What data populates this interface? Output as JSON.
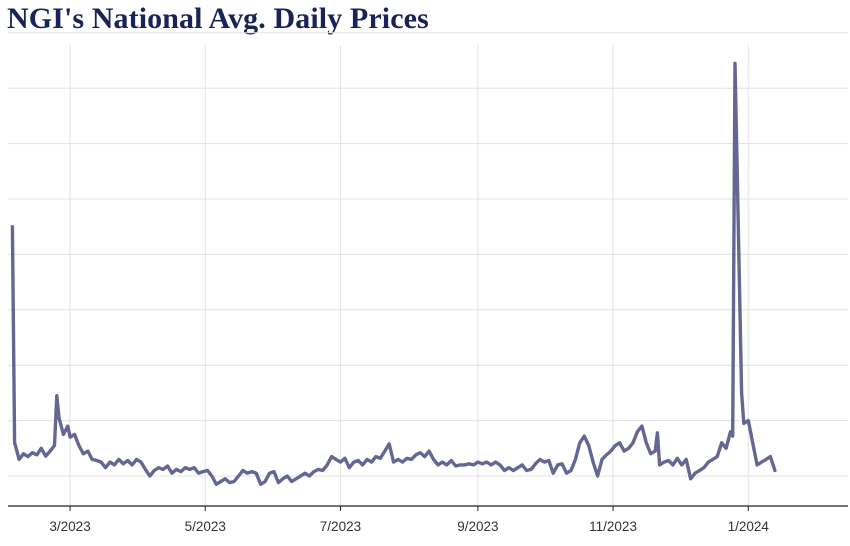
{
  "chart_data": {
    "type": "line",
    "title": "NGI's National Avg. Daily Prices",
    "xlabel": "",
    "ylabel": "",
    "x_tick_labels": [
      "3/2023",
      "5/2023",
      "7/2023",
      "9/2023",
      "11/2023",
      "1/2024"
    ],
    "x_ticks": [
      "2023-03-01",
      "2023-05-01",
      "2023-07-01",
      "2023-09-01",
      "2023-11-01",
      "2024-01-01"
    ],
    "xlim": [
      "2023-02-01",
      "2024-02-15"
    ],
    "ylim": [
      0,
      8
    ],
    "y_gridlines": [
      0,
      1,
      2,
      3,
      4,
      5,
      6,
      7,
      8
    ],
    "y_tick_labels_visible": false,
    "grid": true,
    "line_color": "#646791",
    "series": [
      {
        "points": [
          [
            "2023-02-03",
            4.5
          ],
          [
            "2023-02-04",
            0.6
          ],
          [
            "2023-02-05",
            0.45
          ],
          [
            "2023-02-06",
            0.3
          ],
          [
            "2023-02-08",
            0.4
          ],
          [
            "2023-02-10",
            0.35
          ],
          [
            "2023-02-12",
            0.42
          ],
          [
            "2023-02-14",
            0.38
          ],
          [
            "2023-02-16",
            0.5
          ],
          [
            "2023-02-18",
            0.36
          ],
          [
            "2023-02-20",
            0.45
          ],
          [
            "2023-02-22",
            0.55
          ],
          [
            "2023-02-23",
            1.45
          ],
          [
            "2023-02-24",
            1.05
          ],
          [
            "2023-02-26",
            0.75
          ],
          [
            "2023-02-28",
            0.9
          ],
          [
            "2023-03-01",
            0.7
          ],
          [
            "2023-03-03",
            0.75
          ],
          [
            "2023-03-05",
            0.55
          ],
          [
            "2023-03-07",
            0.4
          ],
          [
            "2023-03-09",
            0.45
          ],
          [
            "2023-03-11",
            0.3
          ],
          [
            "2023-03-13",
            0.28
          ],
          [
            "2023-03-15",
            0.25
          ],
          [
            "2023-03-17",
            0.15
          ],
          [
            "2023-03-19",
            0.25
          ],
          [
            "2023-03-21",
            0.2
          ],
          [
            "2023-03-23",
            0.3
          ],
          [
            "2023-03-25",
            0.22
          ],
          [
            "2023-03-27",
            0.28
          ],
          [
            "2023-03-29",
            0.2
          ],
          [
            "2023-03-31",
            0.3
          ],
          [
            "2023-04-02",
            0.25
          ],
          [
            "2023-04-04",
            0.12
          ],
          [
            "2023-04-06",
            0.0
          ],
          [
            "2023-04-08",
            0.1
          ],
          [
            "2023-04-10",
            0.15
          ],
          [
            "2023-04-12",
            0.12
          ],
          [
            "2023-04-14",
            0.18
          ],
          [
            "2023-04-16",
            0.05
          ],
          [
            "2023-04-18",
            0.12
          ],
          [
            "2023-04-20",
            0.08
          ],
          [
            "2023-04-22",
            0.15
          ],
          [
            "2023-04-24",
            0.12
          ],
          [
            "2023-04-26",
            0.15
          ],
          [
            "2023-04-28",
            0.05
          ],
          [
            "2023-04-30",
            0.08
          ],
          [
            "2023-05-02",
            0.1
          ],
          [
            "2023-05-04",
            0.0
          ],
          [
            "2023-05-06",
            -0.15
          ],
          [
            "2023-05-08",
            -0.1
          ],
          [
            "2023-05-10",
            -0.05
          ],
          [
            "2023-05-12",
            -0.12
          ],
          [
            "2023-05-14",
            -0.1
          ],
          [
            "2023-05-16",
            0.0
          ],
          [
            "2023-05-18",
            0.1
          ],
          [
            "2023-05-20",
            0.05
          ],
          [
            "2023-05-22",
            0.08
          ],
          [
            "2023-05-24",
            0.05
          ],
          [
            "2023-05-26",
            -0.15
          ],
          [
            "2023-05-28",
            -0.1
          ],
          [
            "2023-05-30",
            0.05
          ],
          [
            "2023-06-01",
            0.08
          ],
          [
            "2023-06-03",
            -0.12
          ],
          [
            "2023-06-05",
            -0.05
          ],
          [
            "2023-06-07",
            0.0
          ],
          [
            "2023-06-09",
            -0.1
          ],
          [
            "2023-06-11",
            -0.05
          ],
          [
            "2023-06-13",
            0.0
          ],
          [
            "2023-06-15",
            0.05
          ],
          [
            "2023-06-17",
            0.0
          ],
          [
            "2023-06-19",
            0.08
          ],
          [
            "2023-06-21",
            0.12
          ],
          [
            "2023-06-23",
            0.1
          ],
          [
            "2023-06-25",
            0.2
          ],
          [
            "2023-06-27",
            0.35
          ],
          [
            "2023-06-29",
            0.3
          ],
          [
            "2023-07-01",
            0.25
          ],
          [
            "2023-07-03",
            0.32
          ],
          [
            "2023-07-05",
            0.15
          ],
          [
            "2023-07-07",
            0.25
          ],
          [
            "2023-07-09",
            0.28
          ],
          [
            "2023-07-11",
            0.2
          ],
          [
            "2023-07-13",
            0.3
          ],
          [
            "2023-07-15",
            0.25
          ],
          [
            "2023-07-17",
            0.35
          ],
          [
            "2023-07-19",
            0.32
          ],
          [
            "2023-07-21",
            0.45
          ],
          [
            "2023-07-23",
            0.58
          ],
          [
            "2023-07-25",
            0.25
          ],
          [
            "2023-07-27",
            0.3
          ],
          [
            "2023-07-29",
            0.25
          ],
          [
            "2023-07-31",
            0.32
          ],
          [
            "2023-08-02",
            0.3
          ],
          [
            "2023-08-04",
            0.38
          ],
          [
            "2023-08-06",
            0.42
          ],
          [
            "2023-08-08",
            0.35
          ],
          [
            "2023-08-10",
            0.45
          ],
          [
            "2023-08-12",
            0.3
          ],
          [
            "2023-08-14",
            0.2
          ],
          [
            "2023-08-16",
            0.25
          ],
          [
            "2023-08-18",
            0.2
          ],
          [
            "2023-08-20",
            0.28
          ],
          [
            "2023-08-22",
            0.18
          ],
          [
            "2023-08-24",
            0.2
          ],
          [
            "2023-08-26",
            0.2
          ],
          [
            "2023-08-28",
            0.22
          ],
          [
            "2023-08-30",
            0.2
          ],
          [
            "2023-09-01",
            0.25
          ],
          [
            "2023-09-03",
            0.22
          ],
          [
            "2023-09-05",
            0.25
          ],
          [
            "2023-09-07",
            0.2
          ],
          [
            "2023-09-09",
            0.25
          ],
          [
            "2023-09-11",
            0.2
          ],
          [
            "2023-09-13",
            0.1
          ],
          [
            "2023-09-15",
            0.15
          ],
          [
            "2023-09-17",
            0.1
          ],
          [
            "2023-09-19",
            0.15
          ],
          [
            "2023-09-21",
            0.2
          ],
          [
            "2023-09-23",
            0.1
          ],
          [
            "2023-09-25",
            0.12
          ],
          [
            "2023-09-27",
            0.22
          ],
          [
            "2023-09-29",
            0.3
          ],
          [
            "2023-10-01",
            0.25
          ],
          [
            "2023-10-03",
            0.28
          ],
          [
            "2023-10-05",
            0.05
          ],
          [
            "2023-10-07",
            0.2
          ],
          [
            "2023-10-09",
            0.22
          ],
          [
            "2023-10-11",
            0.05
          ],
          [
            "2023-10-13",
            0.1
          ],
          [
            "2023-10-15",
            0.3
          ],
          [
            "2023-10-17",
            0.6
          ],
          [
            "2023-10-19",
            0.72
          ],
          [
            "2023-10-21",
            0.55
          ],
          [
            "2023-10-23",
            0.25
          ],
          [
            "2023-10-25",
            0.0
          ],
          [
            "2023-10-27",
            0.3
          ],
          [
            "2023-10-29",
            0.38
          ],
          [
            "2023-10-31",
            0.45
          ],
          [
            "2023-11-02",
            0.55
          ],
          [
            "2023-11-04",
            0.6
          ],
          [
            "2023-11-06",
            0.45
          ],
          [
            "2023-11-08",
            0.5
          ],
          [
            "2023-11-10",
            0.6
          ],
          [
            "2023-11-12",
            0.8
          ],
          [
            "2023-11-14",
            0.9
          ],
          [
            "2023-11-16",
            0.6
          ],
          [
            "2023-11-18",
            0.4
          ],
          [
            "2023-11-20",
            0.45
          ],
          [
            "2023-11-21",
            0.78
          ],
          [
            "2023-11-22",
            0.2
          ],
          [
            "2023-11-24",
            0.25
          ],
          [
            "2023-11-26",
            0.28
          ],
          [
            "2023-11-28",
            0.2
          ],
          [
            "2023-11-30",
            0.32
          ],
          [
            "2023-12-02",
            0.2
          ],
          [
            "2023-12-04",
            0.3
          ],
          [
            "2023-12-06",
            -0.05
          ],
          [
            "2023-12-08",
            0.05
          ],
          [
            "2023-12-10",
            0.1
          ],
          [
            "2023-12-12",
            0.15
          ],
          [
            "2023-12-14",
            0.25
          ],
          [
            "2023-12-16",
            0.3
          ],
          [
            "2023-12-18",
            0.35
          ],
          [
            "2023-12-20",
            0.6
          ],
          [
            "2023-12-22",
            0.5
          ],
          [
            "2023-12-24",
            0.8
          ],
          [
            "2023-12-25",
            0.72
          ],
          [
            "2023-12-26",
            7.45
          ],
          [
            "2023-12-27",
            5.5
          ],
          [
            "2023-12-28",
            3.5
          ],
          [
            "2023-12-29",
            1.5
          ],
          [
            "2023-12-30",
            0.95
          ],
          [
            "2024-01-01",
            1.0
          ],
          [
            "2024-01-03",
            0.6
          ],
          [
            "2024-01-05",
            0.2
          ],
          [
            "2024-01-07",
            0.25
          ],
          [
            "2024-01-09",
            0.3
          ],
          [
            "2024-01-11",
            0.35
          ],
          [
            "2024-01-13",
            0.1
          ]
        ]
      }
    ]
  }
}
